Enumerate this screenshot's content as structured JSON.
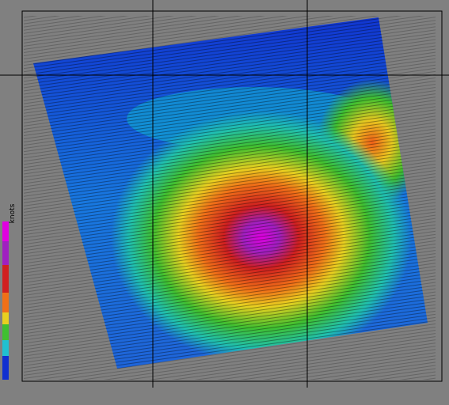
{
  "colorbar": {
    "label": "knots"
  }
}
